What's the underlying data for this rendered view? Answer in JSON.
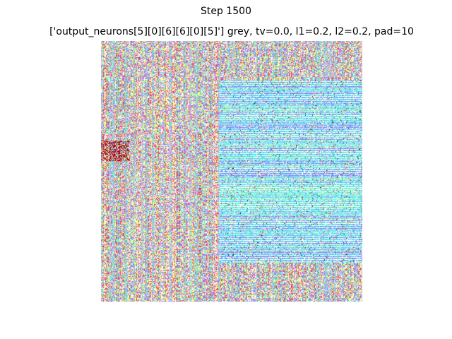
{
  "figure": {
    "suptitle": "Step 1500",
    "axes_title": "['output_neurons[5][0][6][6][0][5]'] grey, tv=0.0, l1=0.2, l2=0.2, pad=10"
  },
  "image": {
    "description_icon": "feature-visualization-image",
    "axis_visible": false,
    "dominant_colors": [
      "#ff66cc",
      "#66ffcc",
      "#ccff66",
      "#6699ff",
      "#ff3333",
      "#ffffff",
      "#ffff66",
      "#cc66ff"
    ]
  }
}
